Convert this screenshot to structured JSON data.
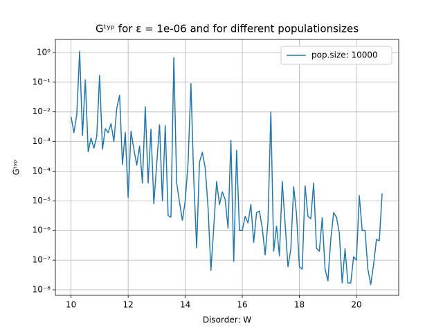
{
  "chart_data": {
    "type": "line",
    "title": "Gᵗʸᵖ for ε = 1e-06 and for different populationsizes",
    "xlabel": "Disorder: W",
    "ylabel": "Gᵗʸᵖ",
    "x": [
      10.0,
      10.1,
      10.2,
      10.3,
      10.4,
      10.5,
      10.6,
      10.7,
      10.8,
      10.9,
      11.0,
      11.1,
      11.2,
      11.3,
      11.4,
      11.5,
      11.6,
      11.7,
      11.8,
      11.9,
      12.0,
      12.1,
      12.2,
      12.3,
      12.4,
      12.5,
      12.6,
      12.7,
      12.8,
      12.9,
      13.0,
      13.1,
      13.2,
      13.3,
      13.4,
      13.5,
      13.6,
      13.7,
      13.8,
      13.9,
      14.0,
      14.1,
      14.2,
      14.3,
      14.4,
      14.5,
      14.6,
      14.7,
      14.8,
      14.9,
      15.0,
      15.1,
      15.2,
      15.3,
      15.4,
      15.5,
      15.6,
      15.7,
      15.8,
      15.9,
      16.0,
      16.1,
      16.2,
      16.3,
      16.4,
      16.5,
      16.6,
      16.7,
      16.8,
      16.9,
      17.0,
      17.1,
      17.2,
      17.3,
      17.4,
      17.5,
      17.6,
      17.7,
      17.8,
      17.9,
      18.0,
      18.1,
      18.2,
      18.3,
      18.4,
      18.5,
      18.6,
      18.7,
      18.8,
      18.9,
      19.0,
      19.1,
      19.2,
      19.3,
      19.4,
      19.5,
      19.6,
      19.7,
      19.8,
      19.9,
      20.0,
      20.1,
      20.2,
      20.3,
      20.4,
      20.5,
      20.6,
      20.7,
      20.8,
      20.9
    ],
    "series": [
      {
        "name": "pop.size: 10000",
        "color": "#1f77b4",
        "values": [
          0.0068,
          0.002,
          0.008,
          1.1,
          0.0016,
          0.12,
          0.00045,
          0.0013,
          0.0006,
          0.0015,
          0.17,
          0.00055,
          0.0027,
          0.002,
          0.004,
          0.001,
          0.013,
          0.036,
          0.00017,
          0.002,
          1.3e-05,
          0.0022,
          0.00055,
          0.00016,
          0.0007,
          4e-05,
          0.015,
          4e-05,
          0.0026,
          8e-06,
          0.00017,
          0.0037,
          1e-05,
          0.0034,
          3.2e-06,
          2.8e-06,
          0.68,
          4e-05,
          9e-06,
          2.2e-06,
          1e-05,
          0.00019,
          0.09,
          5e-05,
          2.6e-07,
          0.0002,
          0.00043,
          0.00013,
          6e-06,
          4.5e-08,
          1.3e-06,
          4.5e-05,
          7.5e-06,
          2e-05,
          1.1e-05,
          1.2e-06,
          0.0011,
          9e-08,
          0.0005,
          1e-06,
          1e-06,
          3e-06,
          1.8e-06,
          7.5e-06,
          4e-07,
          4e-06,
          4.5e-06,
          1.2e-06,
          1.5e-07,
          2e-06,
          0.01,
          2e-07,
          1.4e-06,
          1.4e-07,
          4.5e-05,
          1.7e-06,
          6e-08,
          2.3e-07,
          3e-05,
          3.5e-06,
          6e-08,
          5e-08,
          3.2e-05,
          3e-06,
          2.5e-06,
          4e-05,
          2.5e-07,
          2e-07,
          2.7e-06,
          5e-08,
          2e-08,
          5e-07,
          4e-06,
          2.8e-06,
          8e-07,
          1.7e-08,
          2.4e-07,
          1.7e-08,
          1.7e-08,
          1.3e-07,
          1e-07,
          1.5e-05,
          1e-06,
          1e-06,
          5e-08,
          1.5e-08,
          7e-08,
          5e-07,
          4.5e-07,
          1.8e-05
        ]
      }
    ],
    "xlim": [
      9.45,
      21.48
    ],
    "xticks": [
      10,
      12,
      14,
      16,
      18,
      20
    ],
    "ylim": [
      6.5e-09,
      2.77
    ],
    "yscale": "log",
    "yticks": [
      {
        "value": 1e-08,
        "label": "10⁻⁸"
      },
      {
        "value": 1e-07,
        "label": "10⁻⁷"
      },
      {
        "value": 1e-06,
        "label": "10⁻⁶"
      },
      {
        "value": 1e-05,
        "label": "10⁻⁵"
      },
      {
        "value": 0.0001,
        "label": "10⁻⁴"
      },
      {
        "value": 0.001,
        "label": "10⁻³"
      },
      {
        "value": 0.01,
        "label": "10⁻²"
      },
      {
        "value": 0.1,
        "label": "10⁻¹"
      },
      {
        "value": 1,
        "label": "10⁰"
      }
    ],
    "grid": true,
    "legend": "upper right"
  }
}
